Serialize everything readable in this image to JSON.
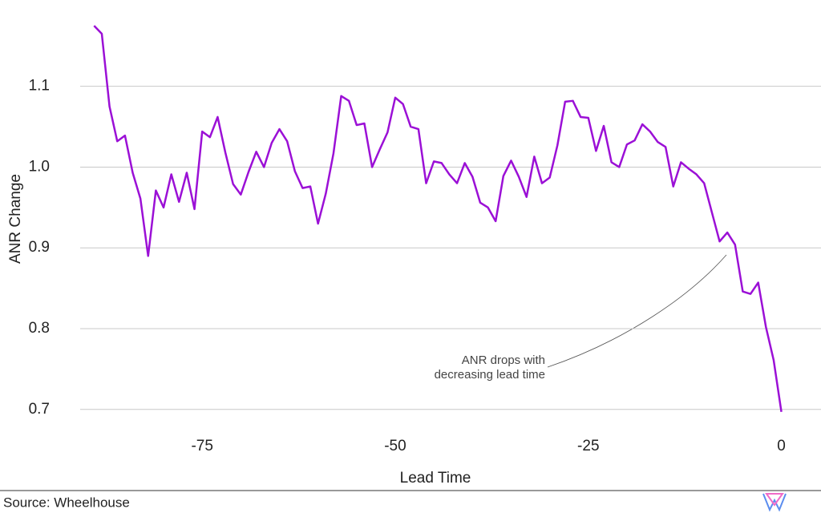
{
  "chart_data": {
    "type": "line",
    "x_label": "Lead Time",
    "y_label": "ANR Change",
    "annotation": [
      "ANR drops with",
      "decreasing lead time"
    ],
    "source": "Source: Wheelhouse",
    "x": [
      -89,
      -88,
      -87,
      -86,
      -85,
      -84,
      -83,
      -82,
      -81,
      -80,
      -79,
      -78,
      -77,
      -76,
      -75,
      -74,
      -73,
      -72,
      -71,
      -70,
      -69,
      -68,
      -67,
      -66,
      -65,
      -64,
      -63,
      -62,
      -61,
      -60,
      -59,
      -58,
      -57,
      -56,
      -55,
      -54,
      -53,
      -52,
      -51,
      -50,
      -49,
      -48,
      -47,
      -46,
      -45,
      -44,
      -43,
      -42,
      -41,
      -40,
      -39,
      -38,
      -37,
      -36,
      -35,
      -34,
      -33,
      -32,
      -31,
      -30,
      -29,
      -28,
      -27,
      -26,
      -25,
      -24,
      -23,
      -22,
      -21,
      -20,
      -19,
      -18,
      -17,
      -16,
      -15,
      -14,
      -13,
      -12,
      -11,
      -10,
      -9,
      -8,
      -7,
      -6,
      -5,
      -4,
      -3,
      -2,
      -1,
      0
    ],
    "series": [
      {
        "color": "#9b10d6",
        "values": [
          1.175,
          1.165,
          1.075,
          1.032,
          1.039,
          0.993,
          0.961,
          0.89,
          0.971,
          0.95,
          0.991,
          0.957,
          0.993,
          0.948,
          1.044,
          1.037,
          1.062,
          1.018,
          0.979,
          0.966,
          0.994,
          1.019,
          1.0,
          1.03,
          1.047,
          1.032,
          0.995,
          0.974,
          0.976,
          0.93,
          0.967,
          1.017,
          1.088,
          1.082,
          1.052,
          1.054,
          1.0,
          1.022,
          1.043,
          1.086,
          1.078,
          1.05,
          1.047,
          0.98,
          1.007,
          1.005,
          0.991,
          0.98,
          1.005,
          0.988,
          0.956,
          0.95,
          0.933,
          0.989,
          1.008,
          0.988,
          0.963,
          1.013,
          0.98,
          0.987,
          1.027,
          1.081,
          1.082,
          1.062,
          1.061,
          1.02,
          1.051,
          1.006,
          1.0,
          1.028,
          1.033,
          1.053,
          1.044,
          1.031,
          1.025,
          0.976,
          1.006,
          0.998,
          0.991,
          0.98,
          0.944,
          0.908,
          0.919,
          0.904,
          0.846,
          0.843,
          0.857,
          0.802,
          0.761,
          0.697
        ]
      }
    ],
    "xlim": [
      -90.8,
      4.3
    ],
    "ylim": [
      0.671,
      1.187
    ],
    "xticks": [
      -75,
      -50,
      -25,
      0
    ],
    "yticks": [
      0.7,
      0.8,
      0.9,
      {
        "value": 1,
        "label": "1.0"
      },
      1.1
    ],
    "grid": true
  }
}
